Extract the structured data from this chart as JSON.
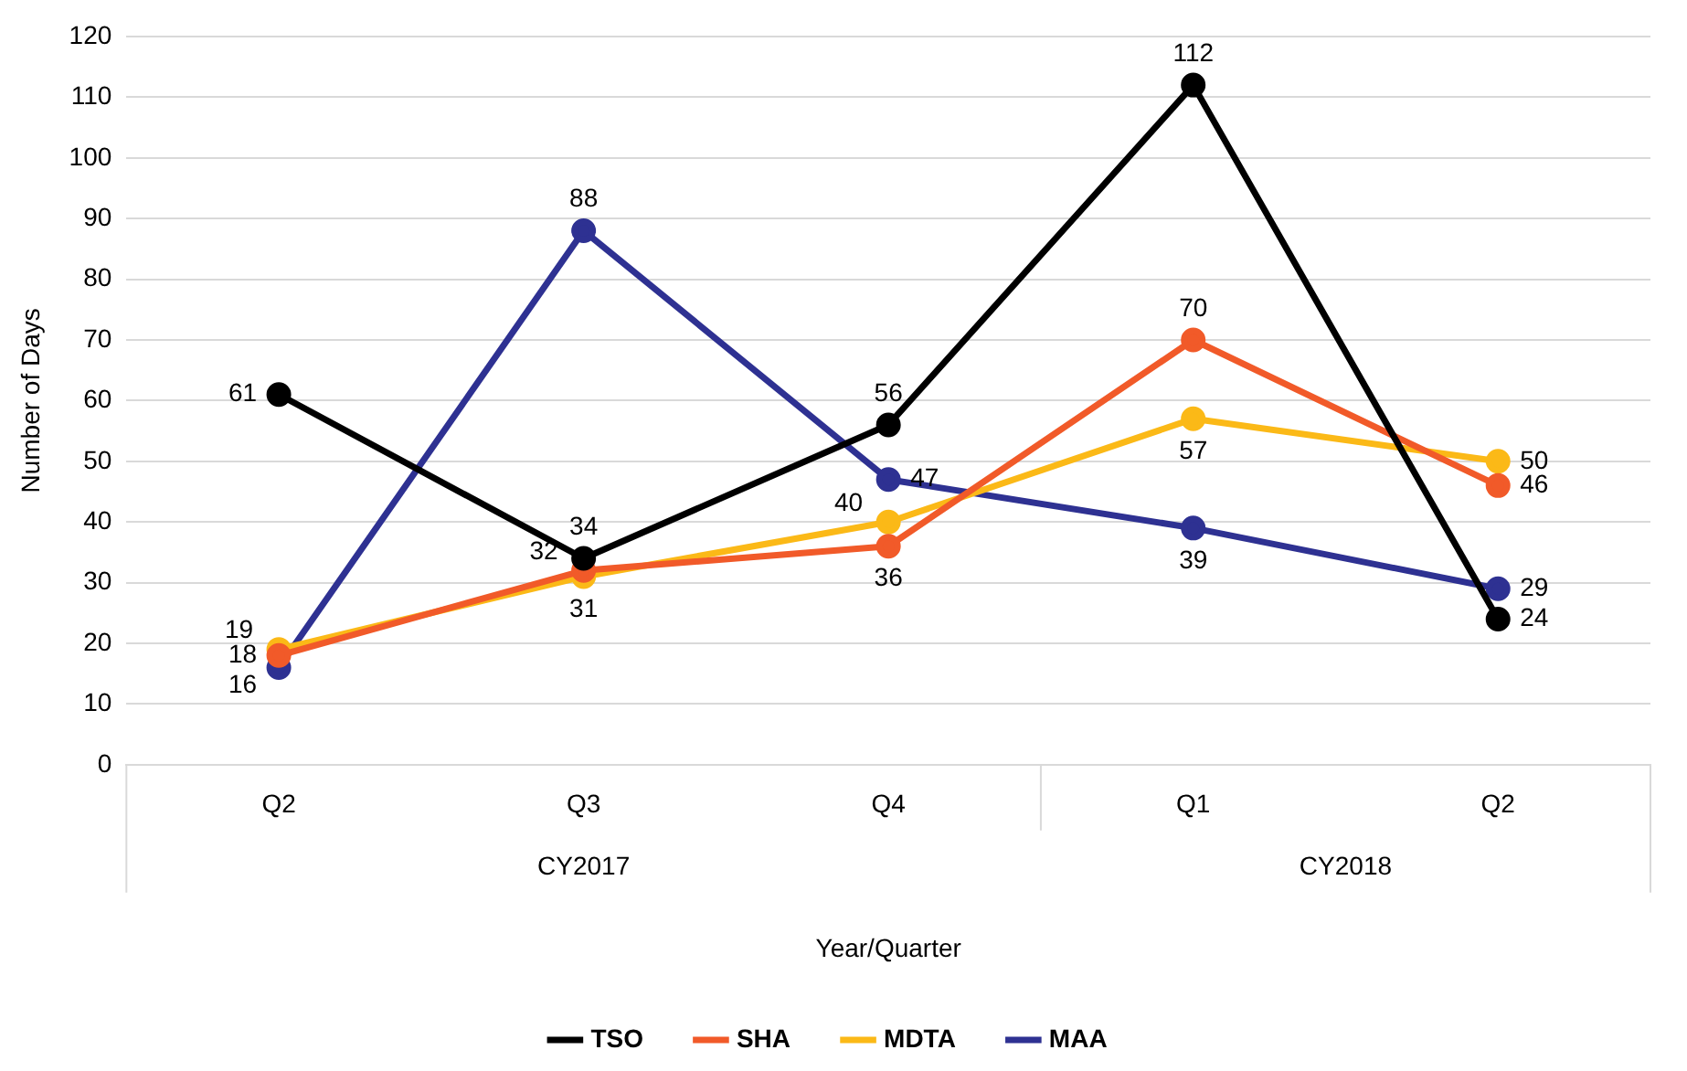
{
  "chart_data": {
    "type": "line",
    "xlabel": "Year/Quarter",
    "ylabel": "Number of Days",
    "categories": [
      "Q2",
      "Q3",
      "Q4",
      "Q1",
      "Q2"
    ],
    "annotations": [
      "CY2017",
      "CY2018"
    ],
    "series": [
      {
        "name": "TSO",
        "color": "#000000",
        "values": [
          61,
          34,
          56,
          112,
          24
        ]
      },
      {
        "name": "SHA",
        "color": "#f15a29",
        "values": [
          18,
          32,
          36,
          70,
          46
        ]
      },
      {
        "name": "MDTA",
        "color": "#fbb917",
        "values": [
          19,
          31,
          40,
          57,
          50
        ]
      },
      {
        "name": "MAA",
        "color": "#2e3192",
        "values": [
          16,
          88,
          47,
          39,
          29
        ]
      }
    ],
    "ylim": [
      0,
      120
    ],
    "yticks": [
      0,
      10,
      20,
      30,
      40,
      50,
      60,
      70,
      80,
      90,
      100,
      110,
      120
    ],
    "grid": "y",
    "legend": "bottom",
    "marker": "circle",
    "line_style": "solid",
    "data_labels": true
  }
}
